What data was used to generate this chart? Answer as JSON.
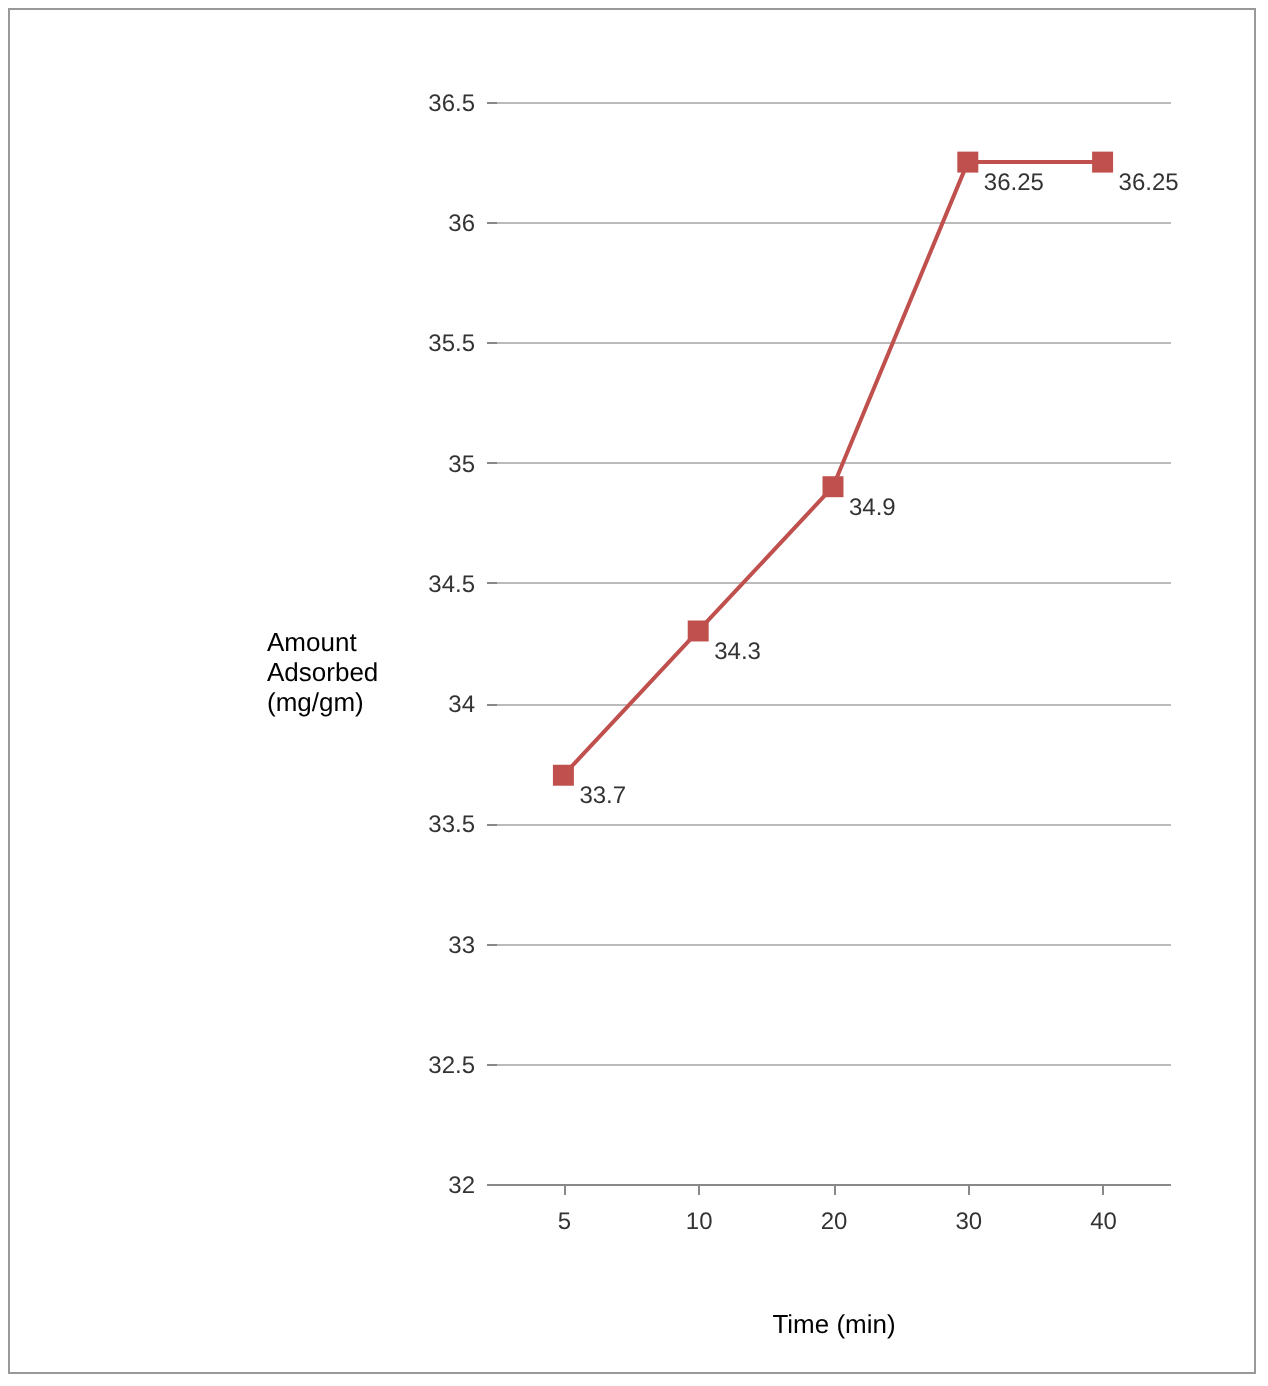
{
  "chart_data": {
    "type": "line",
    "xlabel": "Time (min)",
    "ylabel": "Amount Adsorbed (mg/gm)",
    "categories": [
      "5",
      "10",
      "20",
      "30",
      "40"
    ],
    "series": [
      {
        "color": "#c0504d",
        "values": [
          33.7,
          34.3,
          34.9,
          36.25,
          36.25
        ]
      }
    ],
    "ylim": [
      32,
      36.5
    ],
    "yticks": [
      32,
      32.5,
      33,
      33.5,
      34,
      34.5,
      35,
      35.5,
      36,
      36.5
    ],
    "grid": "y",
    "marker": "square",
    "line_style": "solid",
    "data_labels": true,
    "legend": false
  }
}
